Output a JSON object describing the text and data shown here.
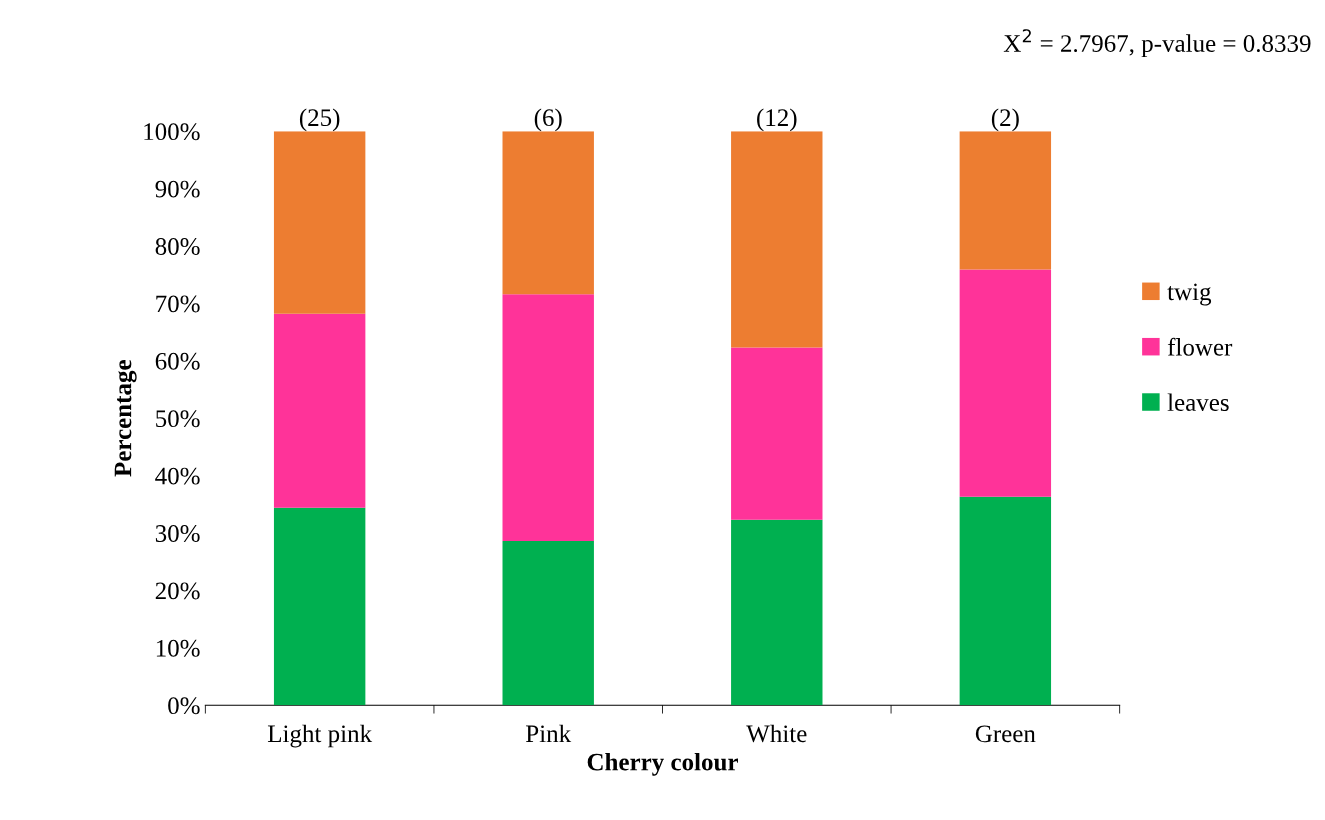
{
  "chart_data": {
    "type": "bar",
    "stacked": true,
    "xlabel": "Cherry colour",
    "ylabel": "Percentage",
    "categories": [
      "Light pink",
      "Pink",
      "White",
      "Green"
    ],
    "series": [
      {
        "name": "leaves",
        "color": "#00b050",
        "values": [
          34.4,
          28.6,
          32.3,
          36.3
        ]
      },
      {
        "name": "flower",
        "color": "#ff3399",
        "values": [
          33.8,
          43.0,
          30.0,
          39.6
        ]
      },
      {
        "name": "twig",
        "color": "#ed7d31",
        "values": [
          31.8,
          28.4,
          37.7,
          24.1
        ]
      }
    ],
    "ylim": [
      0,
      100
    ],
    "yticks": [
      {
        "value": 0,
        "label": "0%"
      },
      {
        "value": 10,
        "label": "10%"
      },
      {
        "value": 20,
        "label": "20%"
      },
      {
        "value": 30,
        "label": "30%"
      },
      {
        "value": 40,
        "label": "40%"
      },
      {
        "value": 50,
        "label": "50%"
      },
      {
        "value": 60,
        "label": "60%"
      },
      {
        "value": 70,
        "label": "70%"
      },
      {
        "value": 80,
        "label": "80%"
      },
      {
        "value": 90,
        "label": "90%"
      },
      {
        "value": 100,
        "label": "100%"
      }
    ],
    "annotations": [
      {
        "text": "(25)",
        "x": "Light pink",
        "y": 100
      },
      {
        "text": "(6)",
        "x": "Pink",
        "y": 100
      },
      {
        "text": "(12)",
        "x": "White",
        "y": 100
      },
      {
        "text": "(2)",
        "x": "Green",
        "y": 100
      },
      "X$^{2}$ = 2.7967, p-value = 0.8339"
    ],
    "legend": "right",
    "grid": false
  }
}
